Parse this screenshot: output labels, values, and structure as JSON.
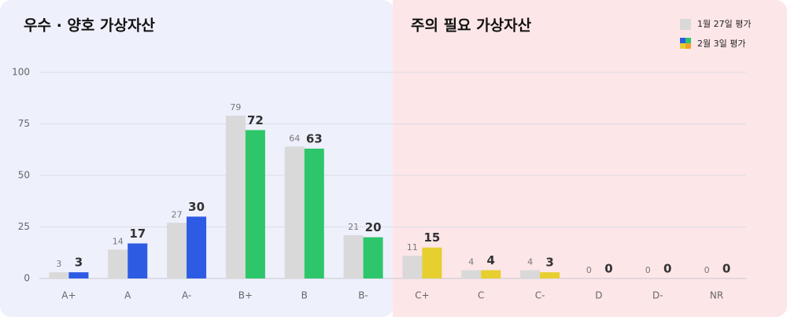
{
  "chart_data": {
    "type": "bar",
    "panel_titles": [
      "우수 · 양호 가상자산",
      "주의 필요 가상자산"
    ],
    "categories": [
      "A+",
      "A",
      "A-",
      "B+",
      "B",
      "B-",
      "C+",
      "C",
      "C-",
      "D",
      "D-",
      "NR"
    ],
    "series": [
      {
        "name": "1월 27일 평가",
        "color": "#d9d9d9",
        "values": [
          3,
          14,
          27,
          79,
          64,
          21,
          11,
          4,
          4,
          0,
          0,
          0
        ]
      },
      {
        "name": "2월 3일 평가",
        "colors": [
          "#2d5be3",
          "#2d5be3",
          "#2d5be3",
          "#2ec66a",
          "#2ec66a",
          "#2ec66a",
          "#e6cf2e",
          "#e6cf2e",
          "#e6cf2e",
          "#e6cf2e",
          "#e6cf2e",
          "#e6cf2e"
        ],
        "values": [
          3,
          17,
          30,
          72,
          63,
          20,
          15,
          4,
          3,
          0,
          0,
          0
        ]
      }
    ],
    "ylim": [
      0,
      100
    ],
    "yticks": [
      0,
      25,
      50,
      75,
      100
    ],
    "grid": true
  }
}
